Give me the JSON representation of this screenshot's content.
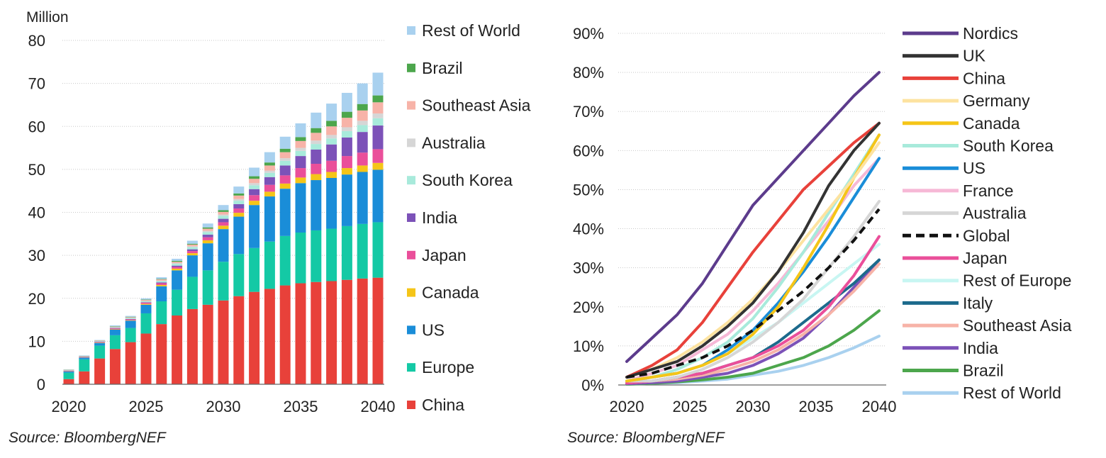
{
  "chart_data": [
    {
      "type": "bar",
      "stacked": true,
      "unit_label": "Million",
      "source": "Source: BloombergNEF",
      "ylim": [
        0,
        80
      ],
      "yticks": [
        0,
        10,
        20,
        30,
        40,
        50,
        60,
        70,
        80
      ],
      "xtick_labels": [
        "2020",
        "2025",
        "2030",
        "2035",
        "2040"
      ],
      "grid": true,
      "legend_position": "right",
      "categories": [
        "2020",
        "2021",
        "2022",
        "2023",
        "2024",
        "2025",
        "2026",
        "2027",
        "2028",
        "2029",
        "2030",
        "2031",
        "2032",
        "2033",
        "2034",
        "2035",
        "2036",
        "2037",
        "2038",
        "2039",
        "2040"
      ],
      "series": [
        {
          "name": "China",
          "color": "#e8413a",
          "values": [
            1.2,
            3.0,
            6.0,
            8.2,
            9.8,
            11.8,
            14.0,
            16.0,
            17.5,
            18.5,
            19.5,
            20.5,
            21.5,
            22.2,
            23.0,
            23.5,
            23.8,
            24.0,
            24.3,
            24.6,
            24.8
          ]
        },
        {
          "name": "Europe",
          "color": "#14c9a5",
          "values": [
            1.5,
            2.8,
            3.0,
            3.2,
            3.3,
            4.7,
            5.3,
            6.0,
            7.5,
            8.0,
            9.0,
            9.8,
            10.2,
            11.0,
            11.5,
            11.8,
            12.0,
            12.2,
            12.5,
            12.7,
            12.9
          ]
        },
        {
          "name": "US",
          "color": "#1a8dd8",
          "values": [
            0.3,
            0.4,
            0.6,
            1.3,
            1.7,
            2.0,
            3.5,
            4.5,
            5.0,
            6.3,
            7.6,
            8.7,
            10.0,
            10.5,
            11.0,
            11.5,
            11.7,
            11.8,
            12.0,
            12.1,
            12.2
          ]
        },
        {
          "name": "Canada",
          "color": "#f5c518",
          "values": [
            0.05,
            0.05,
            0.1,
            0.1,
            0.1,
            0.2,
            0.3,
            0.4,
            0.5,
            0.7,
            0.8,
            0.9,
            1.0,
            1.1,
            1.2,
            1.3,
            1.4,
            1.4,
            1.5,
            1.5,
            1.6
          ]
        },
        {
          "name": "Japan",
          "color": "#ea4f9a",
          "values": [
            0.1,
            0.1,
            0.1,
            0.2,
            0.2,
            0.3,
            0.4,
            0.4,
            0.5,
            0.7,
            0.8,
            1.0,
            1.3,
            1.6,
            1.9,
            2.2,
            2.4,
            2.6,
            2.8,
            3.0,
            3.2
          ]
        },
        {
          "name": "India",
          "color": "#7c52b8",
          "values": [
            0.05,
            0.05,
            0.1,
            0.1,
            0.1,
            0.1,
            0.2,
            0.3,
            0.4,
            0.6,
            0.8,
            1.0,
            1.4,
            1.8,
            2.3,
            2.8,
            3.3,
            3.8,
            4.3,
            4.8,
            5.5
          ]
        },
        {
          "name": "South Korea",
          "color": "#a8eadb",
          "values": [
            0.05,
            0.05,
            0.1,
            0.1,
            0.2,
            0.2,
            0.3,
            0.4,
            0.5,
            0.6,
            0.7,
            0.8,
            0.9,
            1.0,
            1.1,
            1.2,
            1.3,
            1.4,
            1.5,
            1.6,
            1.7
          ]
        },
        {
          "name": "Australia",
          "color": "#d6d6d6",
          "values": [
            0.05,
            0.05,
            0.05,
            0.1,
            0.1,
            0.1,
            0.1,
            0.2,
            0.2,
            0.3,
            0.3,
            0.4,
            0.5,
            0.5,
            0.6,
            0.7,
            0.8,
            0.8,
            0.9,
            1.0,
            1.1
          ]
        },
        {
          "name": "Southeast Asia",
          "color": "#f7b3a8",
          "values": [
            0.05,
            0.05,
            0.1,
            0.1,
            0.1,
            0.2,
            0.3,
            0.3,
            0.4,
            0.5,
            0.6,
            0.8,
            1.0,
            1.2,
            1.4,
            1.6,
            1.8,
            2.0,
            2.2,
            2.4,
            2.6
          ]
        },
        {
          "name": "Brazil",
          "color": "#4ca64c",
          "values": [
            0.05,
            0.05,
            0.05,
            0.1,
            0.1,
            0.1,
            0.1,
            0.2,
            0.2,
            0.3,
            0.4,
            0.5,
            0.6,
            0.7,
            0.8,
            0.9,
            1.1,
            1.3,
            1.4,
            1.5,
            1.6
          ]
        },
        {
          "name": "Rest of World",
          "color": "#a9d1ef",
          "values": [
            0.05,
            0.1,
            0.1,
            0.2,
            0.2,
            0.3,
            0.4,
            0.5,
            0.7,
            0.9,
            1.2,
            1.6,
            2.0,
            2.4,
            2.8,
            3.2,
            3.6,
            4.0,
            4.4,
            4.8,
            5.3
          ]
        }
      ]
    },
    {
      "type": "line",
      "source": "Source: BloombergNEF",
      "ylim": [
        0,
        90
      ],
      "yticks": [
        "0%",
        "10%",
        "20%",
        "30%",
        "40%",
        "50%",
        "60%",
        "70%",
        "80%",
        "90%"
      ],
      "xtick_labels": [
        "2020",
        "2025",
        "2030",
        "2035",
        "2040"
      ],
      "x": [
        2020,
        2022,
        2024,
        2026,
        2028,
        2030,
        2032,
        2034,
        2036,
        2038,
        2040
      ],
      "grid": true,
      "legend_position": "right",
      "series": [
        {
          "name": "Nordics",
          "color": "#5c3b8c",
          "values": [
            6,
            12,
            18,
            26,
            36,
            46,
            53,
            60,
            67,
            74,
            80
          ]
        },
        {
          "name": "UK",
          "color": "#333333",
          "values": [
            2,
            4,
            6,
            10,
            15,
            21,
            29,
            39,
            51,
            60,
            67
          ]
        },
        {
          "name": "China",
          "color": "#e8413a",
          "values": [
            2,
            5,
            9,
            16,
            25,
            34,
            42,
            50,
            56,
            62,
            67
          ]
        },
        {
          "name": "Germany",
          "color": "#fde3a0",
          "values": [
            2,
            4,
            7,
            11,
            16,
            22,
            29,
            37,
            45,
            53,
            62
          ]
        },
        {
          "name": "Canada",
          "color": "#f5c518",
          "values": [
            1,
            2,
            3,
            5,
            8,
            13,
            20,
            30,
            41,
            53,
            64
          ]
        },
        {
          "name": "South Korea",
          "color": "#a8eadb",
          "values": [
            1,
            2,
            4,
            7,
            11,
            17,
            25,
            34,
            44,
            54,
            64
          ]
        },
        {
          "name": "US",
          "color": "#1a8dd8",
          "values": [
            1,
            2,
            3,
            5,
            9,
            14,
            21,
            29,
            38,
            48,
            58
          ]
        },
        {
          "name": "France",
          "color": "#f6b8d6",
          "values": [
            1,
            3,
            5,
            9,
            13,
            19,
            26,
            34,
            42,
            51,
            58
          ]
        },
        {
          "name": "Australia",
          "color": "#d6d6d6",
          "values": [
            1,
            1,
            2,
            4,
            7,
            11,
            16,
            22,
            30,
            38,
            47
          ]
        },
        {
          "name": "Global",
          "color": "#111111",
          "dashed": true,
          "values": [
            2,
            3,
            5,
            7,
            10,
            14,
            19,
            24,
            30,
            37,
            45
          ]
        },
        {
          "name": "Japan",
          "color": "#ea4f9a",
          "values": [
            0.5,
            1,
            2,
            3,
            5,
            7,
            10,
            14,
            20,
            28,
            38
          ]
        },
        {
          "name": "Rest of Europe",
          "color": "#c8f6f2",
          "values": [
            1,
            2,
            3,
            5,
            8,
            12,
            16,
            21,
            26,
            31,
            36
          ]
        },
        {
          "name": "Italy",
          "color": "#1c6a8c",
          "values": [
            1,
            1,
            2,
            3,
            5,
            7,
            11,
            16,
            21,
            26,
            32
          ]
        },
        {
          "name": "Southeast Asia",
          "color": "#f7b3a8",
          "values": [
            0.5,
            1,
            1.5,
            2.5,
            4,
            6,
            9,
            13,
            18,
            24,
            31
          ]
        },
        {
          "name": "India",
          "color": "#7c52b8",
          "values": [
            0.3,
            0.6,
            1,
            2,
            3,
            5,
            8,
            12,
            18,
            25,
            32
          ]
        },
        {
          "name": "Brazil",
          "color": "#4ca64c",
          "values": [
            0.2,
            0.4,
            0.8,
            1.3,
            2,
            3,
            5,
            7,
            10,
            14,
            19
          ]
        },
        {
          "name": "Rest of World",
          "color": "#a9d1ef",
          "values": [
            0.2,
            0.4,
            0.6,
            1,
            1.5,
            2.5,
            3.5,
            5,
            7,
            9.5,
            12.5
          ]
        }
      ]
    }
  ]
}
